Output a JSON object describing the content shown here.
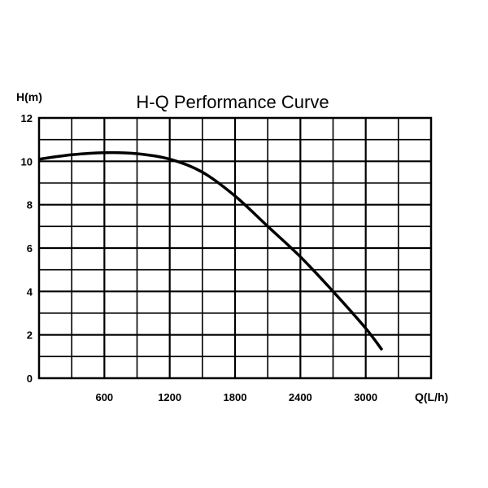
{
  "chart_data": {
    "type": "line",
    "title": "H-Q Performance Curve",
    "xlabel": "Q(L/h)",
    "ylabel": "H(m)",
    "xlim": [
      0,
      3600
    ],
    "ylim": [
      0,
      12
    ],
    "x_major_step": 600,
    "x_minor_step": 300,
    "y_major_step": 2,
    "y_minor_step": 1,
    "x_ticks": [
      "600",
      "1200",
      "1800",
      "2400",
      "3000"
    ],
    "y_ticks": [
      "0",
      "2",
      "4",
      "6",
      "8",
      "10",
      "12"
    ],
    "grid": true,
    "series": [
      {
        "x": [
          0,
          300,
          600,
          900,
          1200,
          1500,
          1800,
          2100,
          2400,
          2700,
          3000,
          3150
        ],
        "y": [
          10.1,
          10.3,
          10.4,
          10.35,
          10.1,
          9.5,
          8.4,
          7.0,
          5.6,
          4.0,
          2.3,
          1.3
        ]
      }
    ]
  }
}
